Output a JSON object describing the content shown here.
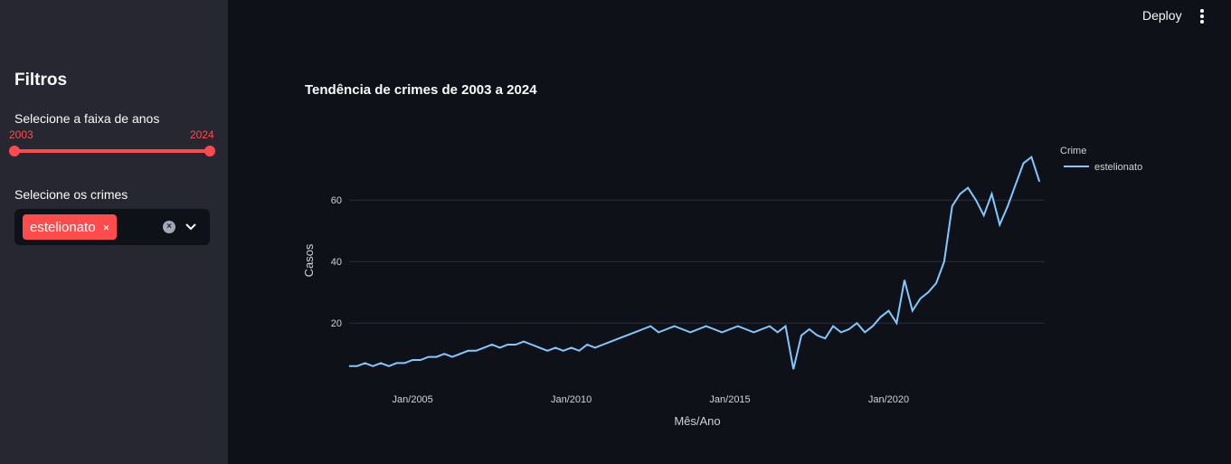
{
  "topbar": {
    "deploy_label": "Deploy",
    "menu_icon": "vertical-dots-icon"
  },
  "sidebar": {
    "title": "Filtros",
    "year_slider": {
      "label": "Selecione a faixa de anos",
      "min_value": "2003",
      "max_value": "2024"
    },
    "crime_select": {
      "label": "Selecione os crimes",
      "selected_tag": "estelionato",
      "tag_remove": "×",
      "clear_icon": "clear-icon",
      "dropdown_icon": "chevron-down-icon"
    }
  },
  "colors": {
    "accent": "#ff4b4b",
    "line": "#83c9ff",
    "sidebar_bg": "#262730",
    "page_bg": "#0e1117"
  },
  "chart_data": {
    "type": "line",
    "title": "Tendência de crimes de 2003 a 2024",
    "xlabel": "Mês/Ano",
    "ylabel": "Casos",
    "x_ticks": [
      "Jan/2005",
      "Jan/2010",
      "Jan/2015",
      "Jan/2020"
    ],
    "y_ticks": [
      20,
      40,
      60
    ],
    "ylim": [
      3,
      78
    ],
    "xlim": [
      "2003-01",
      "2024-12"
    ],
    "grid": true,
    "legend": {
      "title": "Crime",
      "placement": "top-right"
    },
    "series": [
      {
        "name": "estelionato",
        "x": [
          "2003-01",
          "2003-04",
          "2003-07",
          "2003-10",
          "2004-01",
          "2004-04",
          "2004-07",
          "2004-10",
          "2005-01",
          "2005-04",
          "2005-07",
          "2005-10",
          "2006-01",
          "2006-04",
          "2006-07",
          "2006-10",
          "2007-01",
          "2007-04",
          "2007-07",
          "2007-10",
          "2008-01",
          "2008-04",
          "2008-07",
          "2008-10",
          "2009-01",
          "2009-04",
          "2009-07",
          "2009-10",
          "2010-01",
          "2010-04",
          "2010-07",
          "2010-10",
          "2011-01",
          "2011-04",
          "2011-07",
          "2011-10",
          "2012-01",
          "2012-04",
          "2012-07",
          "2012-10",
          "2013-01",
          "2013-04",
          "2013-07",
          "2013-10",
          "2014-01",
          "2014-04",
          "2014-07",
          "2014-10",
          "2015-01",
          "2015-04",
          "2015-07",
          "2015-10",
          "2016-01",
          "2016-04",
          "2016-07",
          "2016-10",
          "2017-01",
          "2017-04",
          "2017-07",
          "2017-10",
          "2018-01",
          "2018-04",
          "2018-07",
          "2018-10",
          "2019-01",
          "2019-04",
          "2019-07",
          "2019-10",
          "2020-01",
          "2020-04",
          "2020-07",
          "2020-10",
          "2021-01",
          "2021-04",
          "2021-07",
          "2021-10",
          "2022-01",
          "2022-04",
          "2022-07",
          "2022-10",
          "2023-01",
          "2023-04",
          "2023-07",
          "2023-10",
          "2024-01",
          "2024-04",
          "2024-07",
          "2024-10"
        ],
        "values": [
          6,
          6,
          7,
          6,
          7,
          6,
          7,
          7,
          8,
          8,
          9,
          9,
          10,
          9,
          10,
          11,
          11,
          12,
          13,
          12,
          13,
          13,
          14,
          13,
          12,
          11,
          12,
          11,
          12,
          11,
          13,
          12,
          13,
          14,
          15,
          16,
          17,
          18,
          19,
          17,
          18,
          19,
          18,
          17,
          18,
          19,
          18,
          17,
          18,
          19,
          18,
          17,
          18,
          19,
          17,
          19,
          5,
          16,
          18,
          16,
          15,
          19,
          17,
          18,
          20,
          17,
          19,
          22,
          24,
          20,
          34,
          24,
          28,
          30,
          33,
          40,
          58,
          62,
          64,
          60,
          55,
          62,
          52,
          58,
          65,
          72,
          74,
          66
        ]
      }
    ]
  }
}
